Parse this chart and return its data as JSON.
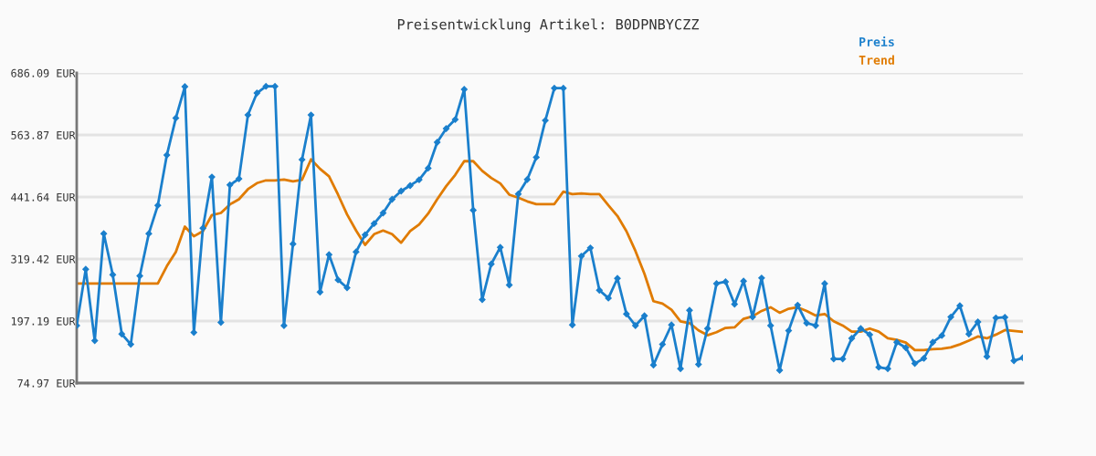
{
  "chart_data": {
    "type": "line",
    "title": "Preisentwicklung Artikel: B0DPNBYCZZ",
    "categories": [
      null,
      null,
      null,
      null,
      null,
      null,
      null,
      null,
      null,
      null,
      null,
      null,
      null,
      null,
      null,
      null,
      null,
      null,
      null,
      null,
      null,
      null,
      null,
      null,
      null,
      null,
      null,
      null,
      null,
      null,
      null,
      null,
      null,
      null,
      null,
      null,
      null,
      null,
      null,
      null,
      null,
      null,
      null,
      null,
      null,
      null,
      null,
      null,
      null,
      null,
      null,
      null,
      null,
      null,
      null,
      null,
      null,
      null,
      null,
      null,
      null,
      null,
      null,
      null,
      null,
      null,
      null,
      null,
      null,
      null,
      null,
      null,
      null,
      null,
      null,
      null,
      null,
      null,
      null,
      null,
      null,
      null,
      null,
      null,
      null,
      null,
      null,
      null,
      null,
      null,
      null,
      null,
      null,
      null,
      null,
      null,
      null,
      null,
      null,
      null,
      null,
      null,
      null,
      null,
      null,
      null
    ],
    "series": [
      {
        "name": "Preis",
        "color": "#1a7fcc",
        "marker": "diamond",
        "values": [
          188.3,
          299.3,
          158.4,
          369.5,
          288.5,
          171.6,
          151.2,
          286.1,
          369.5,
          425.2,
          524.2,
          597.3,
          659.1,
          174.6,
          380.3,
          481.0,
          194.3,
          465.4,
          477.4,
          603.3,
          646.5,
          659.7,
          659.7,
          188.3,
          349.1,
          515.2,
          603.3,
          254.3,
          328.1,
          278.3,
          262.7,
          333.5,
          367.1,
          389.2,
          410.2,
          437.2,
          453.4,
          464.2,
          475.6,
          498.4,
          549.4,
          576.4,
          594.3,
          653.7,
          415.6,
          239.3,
          309.5,
          342.5,
          268.1,
          447.4,
          476.2,
          520.0,
          592.5,
          656.1,
          656.1,
          189.5,
          325.1,
          341.3,
          257.9,
          242.3,
          281.3,
          211.1,
          188.3,
          207.5,
          110.4,
          151.2,
          189.5,
          103.2,
          218.3,
          111.6,
          182.4,
          271.1,
          274.7,
          230.3,
          275.9,
          205.1,
          281.9,
          188.3,
          100.2,
          178.2,
          228.5,
          193.1,
          188.3,
          271.1,
          122.4,
          122.4,
          163.1,
          182.4,
          170.4,
          106.2,
          103.2,
          155.4,
          144.6,
          113.4,
          123.6,
          155.4,
          168.6,
          205.1,
          227.3,
          171.6,
          195.5,
          127.2,
          203.3,
          204.5,
          118.8,
          124.8
        ]
      },
      {
        "name": "Trend",
        "color": "#e07b00",
        "marker": "none",
        "values": [
          271.1,
          271.1,
          271.1,
          271.1,
          271.1,
          271.1,
          271.1,
          271.1,
          271.1,
          271.1,
          305.3,
          333.5,
          383.3,
          364.1,
          374.3,
          406.1,
          410.2,
          427.0,
          437.2,
          457.0,
          469.0,
          474.4,
          474.4,
          476.2,
          472.6,
          475.6,
          515.8,
          497.2,
          482.2,
          446.2,
          407.2,
          375.5,
          347.3,
          368.3,
          375.5,
          368.3,
          351.5,
          374.3,
          387.4,
          409.0,
          437.2,
          463.0,
          485.2,
          512.2,
          512.2,
          493.0,
          479.2,
          468.4,
          446.2,
          440.2,
          433.0,
          427.6,
          427.6,
          427.6,
          452.2,
          447.4,
          448.6,
          447.4,
          447.4,
          425.2,
          404.2,
          374.3,
          335.3,
          290.3,
          236.3,
          231.5,
          219.5,
          196.7,
          193.1,
          178.8,
          169.2,
          175.2,
          183.6,
          184.8,
          201.5,
          206.3,
          217.1,
          224.3,
          213.5,
          221.3,
          224.3,
          217.1,
          208.1,
          211.1,
          196.7,
          188.3,
          176.4,
          176.4,
          182.4,
          176.4,
          163.1,
          160.2,
          154.8,
          139.8,
          139.8,
          141.6,
          142.8,
          145.2,
          151.2,
          158.4,
          166.8,
          163.1,
          170.4,
          179.4,
          177.6,
          175.8
        ]
      }
    ],
    "ylim": [
      74.97,
      686.09
    ],
    "yticks": [
      {
        "value": 74.97,
        "label": "74.97 EUR"
      },
      {
        "value": 197.19,
        "label": "197.19 EUR"
      },
      {
        "value": 319.42,
        "label": "319.42 EUR"
      },
      {
        "value": 441.64,
        "label": "441.64 EUR"
      },
      {
        "value": 563.87,
        "label": "563.87 EUR"
      },
      {
        "value": 686.09,
        "label": "686.09 EUR"
      }
    ],
    "grid": "y",
    "legend": "top right",
    "line_style": "solid"
  }
}
